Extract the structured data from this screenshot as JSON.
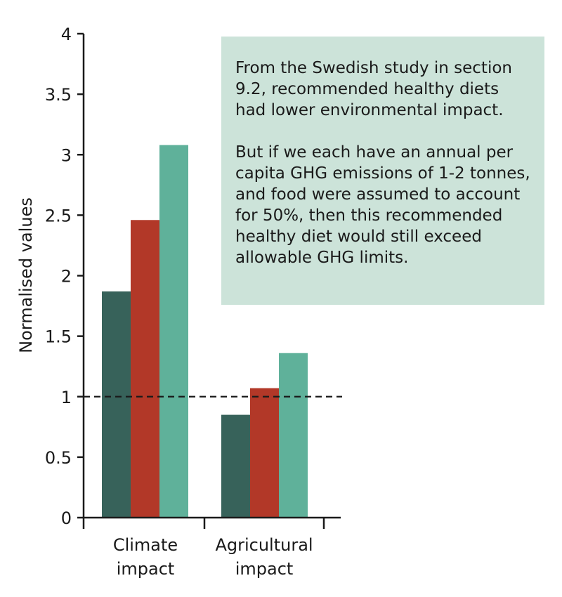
{
  "chart_data": {
    "type": "bar",
    "categories": [
      [
        "Climate",
        "impact"
      ],
      [
        "Agricultural",
        "impact"
      ]
    ],
    "series": [
      {
        "values": [
          1.87,
          0.85
        ],
        "color": "#37625a"
      },
      {
        "values": [
          2.46,
          1.07
        ],
        "color": "#b23828"
      },
      {
        "values": [
          3.08,
          1.36
        ],
        "color": "#5fb19a"
      }
    ],
    "xlabel": "",
    "ylabel": "Normalised values",
    "ylim": [
      0,
      4
    ],
    "yticks": [
      0,
      0.5,
      1,
      1.5,
      2,
      2.5,
      3,
      3.5,
      4
    ],
    "ytick_labels": [
      "0",
      "0.5",
      "1",
      "1.5",
      "2",
      "2.5",
      "3",
      "3.5",
      "4"
    ],
    "reference_line": {
      "y": 1,
      "style": "dashed"
    },
    "grid": false,
    "legend": "none"
  },
  "note": {
    "background": "#cce3d9",
    "paragraph1": "From the Swedish study in section 9.2, recommended healthy diets had lower environmental impact.",
    "paragraph2": "But if we each have an annual per capita GHG emissions of 1-2 tonnes, and food were assumed to account for 50%, then this recommended healthy diet would still exceed allowable GHG limits."
  }
}
